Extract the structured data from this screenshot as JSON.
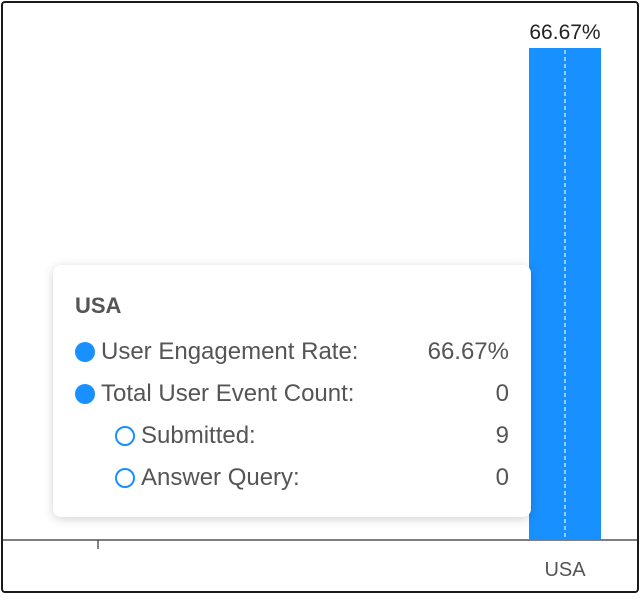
{
  "chart_data": {
    "type": "bar",
    "categories": [
      "USA"
    ],
    "series": [
      {
        "values": [
          66.67
        ]
      }
    ],
    "value_labels": [
      "66.67%"
    ],
    "bar_color": "#1890ff",
    "grid": false
  },
  "tooltip": {
    "title": "USA",
    "rows": [
      {
        "label": "User Engagement Rate:",
        "value": "66.67%",
        "marker": "filled"
      },
      {
        "label": "Total User Event Count:",
        "value": "0",
        "marker": "filled"
      },
      {
        "label": "Submitted:",
        "value": "9",
        "marker": "hollow"
      },
      {
        "label": "Answer Query:",
        "value": "0",
        "marker": "hollow"
      }
    ],
    "marker_color": "#1890ff"
  }
}
